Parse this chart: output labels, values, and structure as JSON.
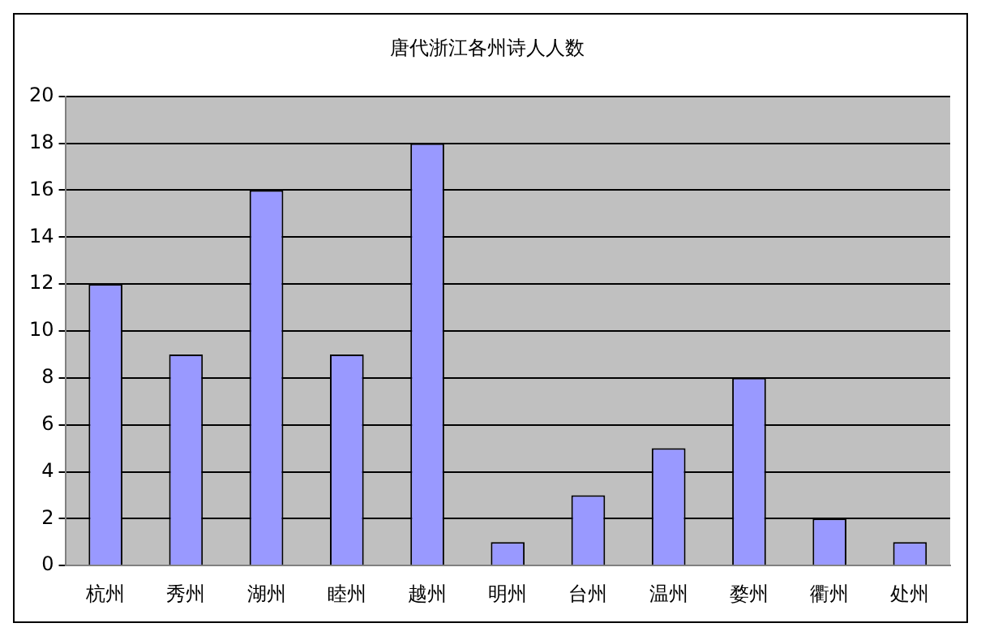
{
  "chart_data": {
    "type": "bar",
    "title": "唐代浙江各州诗人人数",
    "categories": [
      "杭州",
      "秀州",
      "湖州",
      "睦州",
      "越州",
      "明州",
      "台州",
      "温州",
      "婺州",
      "衢州",
      "处州"
    ],
    "values": [
      12,
      9,
      16,
      9,
      18,
      1,
      3,
      5,
      8,
      2,
      1
    ],
    "color": "#9999ff",
    "ylim": [
      0,
      20
    ],
    "yticks": [
      0,
      2,
      4,
      6,
      8,
      10,
      12,
      14,
      16,
      18,
      20
    ],
    "grid": "y"
  }
}
